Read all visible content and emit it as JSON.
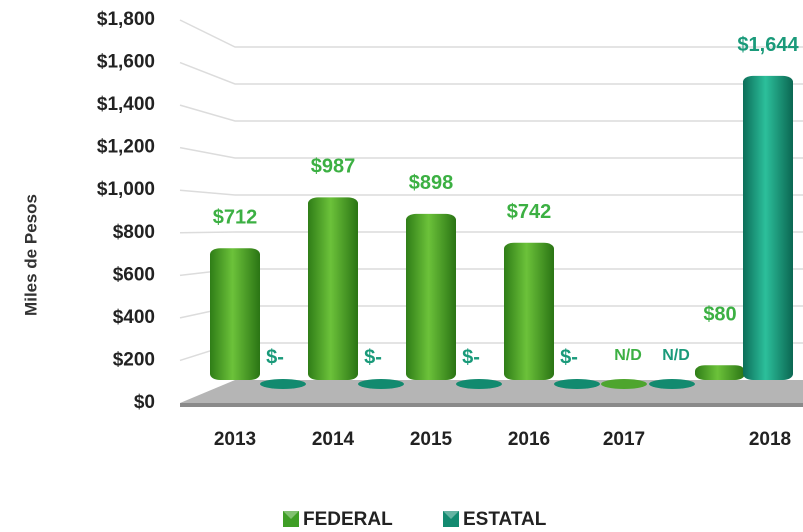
{
  "chart_data": {
    "type": "bar",
    "y_axis_label": "Miles de Pesos",
    "categories": [
      "2013",
      "2014",
      "2015",
      "2016",
      "2017",
      "2018"
    ],
    "series": [
      {
        "name": "FEDERAL",
        "color": "#3f9e26",
        "values": [
          712,
          987,
          898,
          742,
          null,
          80
        ],
        "value_labels": [
          "$712",
          "$987",
          "$898",
          "$742",
          "N/D",
          "$80"
        ]
      },
      {
        "name": "ESTATAL",
        "color": "#138a70",
        "values": [
          0,
          0,
          0,
          0,
          null,
          1644
        ],
        "value_labels": [
          "$-",
          "$-",
          "$-",
          "$-",
          "N/D",
          "$1,644"
        ]
      }
    ],
    "ylim": [
      0,
      1800
    ],
    "yticks": [
      {
        "value": 0,
        "label": "$0"
      },
      {
        "value": 200,
        "label": "$200"
      },
      {
        "value": 400,
        "label": "$400"
      },
      {
        "value": 600,
        "label": "$600"
      },
      {
        "value": 800,
        "label": "$800"
      },
      {
        "value": 1000,
        "label": "$1,000"
      },
      {
        "value": 1200,
        "label": "$1,200"
      },
      {
        "value": 1400,
        "label": "$1,400"
      },
      {
        "value": 1600,
        "label": "$1,600"
      },
      {
        "value": 1800,
        "label": "$1,800"
      }
    ],
    "grid": true
  }
}
